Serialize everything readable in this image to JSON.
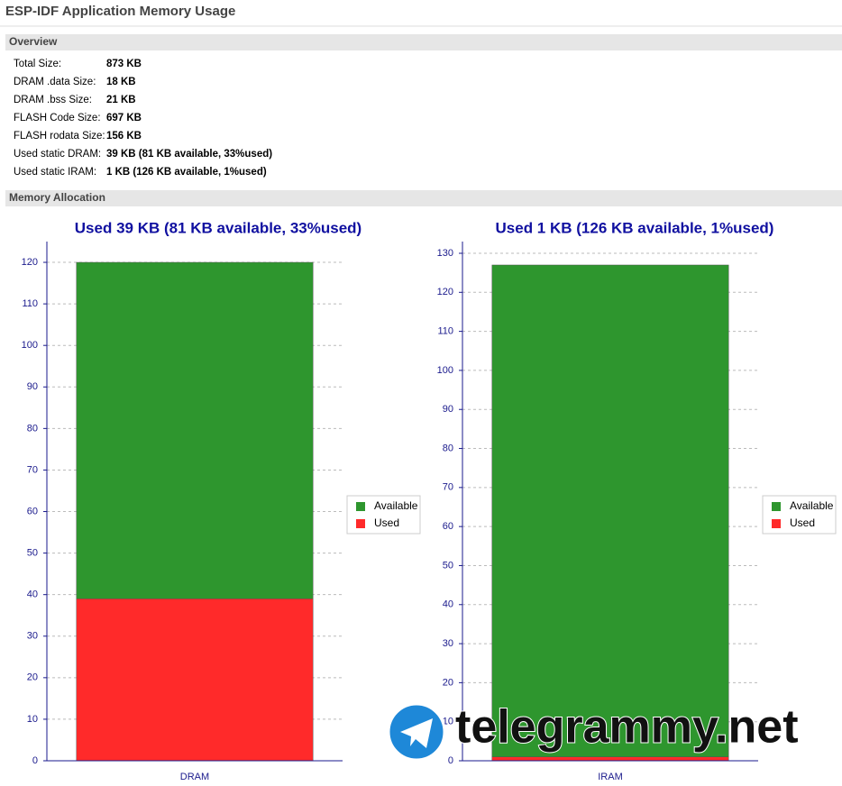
{
  "header": {
    "title": "ESP-IDF Application Memory Usage"
  },
  "overview": {
    "title": "Overview",
    "rows": [
      [
        "Total Size:",
        "873 KB"
      ],
      [
        "DRAM .data Size:",
        "18 KB"
      ],
      [
        "DRAM .bss Size:",
        "21 KB"
      ],
      [
        "FLASH Code Size:",
        "697 KB"
      ],
      [
        "FLASH rodata Size:",
        "156 KB"
      ],
      [
        "Used static DRAM:",
        "39 KB (81 KB available, 33%used)"
      ],
      [
        "Used static IRAM:",
        "1 KB (126 KB available, 1%used)"
      ]
    ]
  },
  "memory_allocation": {
    "title": "Memory Allocation"
  },
  "chart_data": [
    {
      "type": "bar",
      "stacked": true,
      "title": "Used 39 KB (81 KB available, 33%used)",
      "categories": [
        "DRAM"
      ],
      "series": [
        {
          "name": "Used",
          "color": "#ff2a2a",
          "values": [
            39
          ]
        },
        {
          "name": "Available",
          "color": "#2e962e",
          "values": [
            81
          ]
        }
      ],
      "ylim": [
        0,
        125
      ],
      "yticks": [
        0,
        10,
        20,
        30,
        40,
        50,
        60,
        70,
        80,
        90,
        100,
        110,
        120
      ],
      "grid": true,
      "legend": "right"
    },
    {
      "type": "bar",
      "stacked": true,
      "title": "Used 1 KB (126 KB available, 1%used)",
      "categories": [
        "IRAM"
      ],
      "series": [
        {
          "name": "Used",
          "color": "#ff2a2a",
          "values": [
            1
          ]
        },
        {
          "name": "Available",
          "color": "#2e962e",
          "values": [
            126
          ]
        }
      ],
      "ylim": [
        0,
        133
      ],
      "yticks": [
        0,
        10,
        20,
        30,
        40,
        50,
        60,
        70,
        80,
        90,
        100,
        110,
        120,
        130
      ],
      "grid": true,
      "legend": "right"
    }
  ],
  "watermark": "telegrammy.net"
}
